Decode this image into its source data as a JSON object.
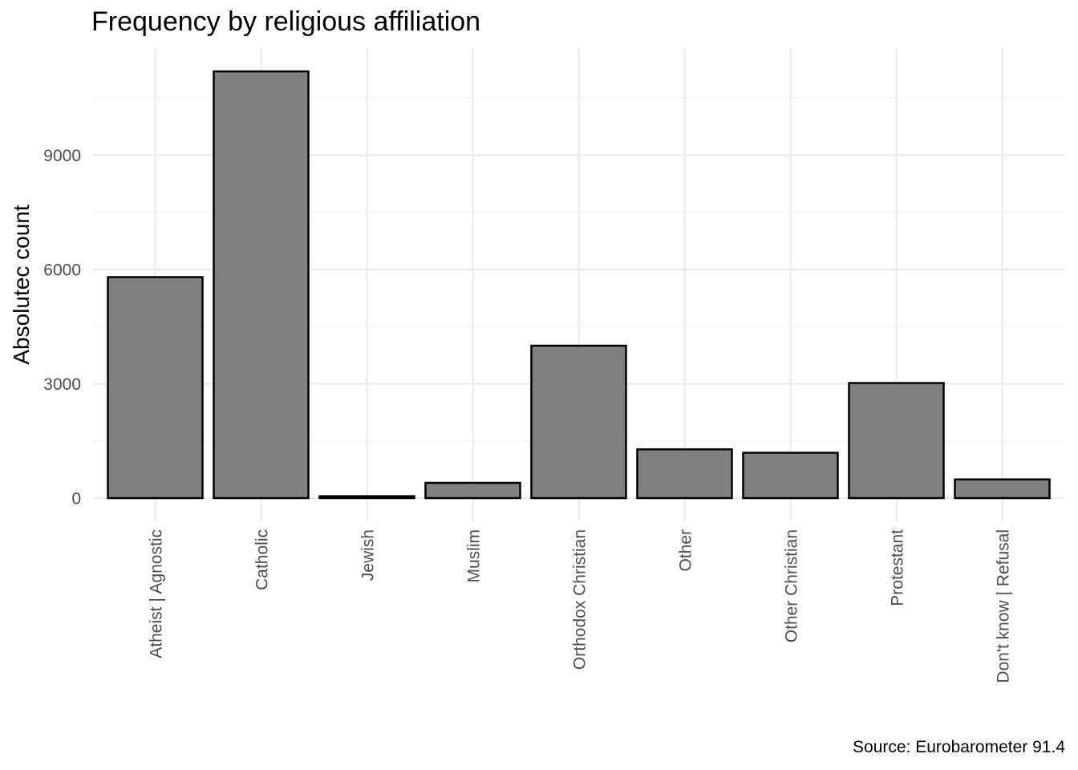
{
  "chart_data": {
    "type": "bar",
    "title": "Frequency by religious affiliation",
    "caption": "Source: Eurobarometer 91.4",
    "xlabel": "",
    "ylabel": "Absolutec count",
    "categories": [
      "Atheist | Agnostic",
      "Catholic",
      "Jewish",
      "Muslim",
      "Orthodox Christian",
      "Other",
      "Other Christian",
      "Protestant",
      "Don't know | Refusal"
    ],
    "values": [
      5800,
      11200,
      50,
      400,
      4000,
      1280,
      1190,
      3020,
      490
    ],
    "yticks": [
      0,
      3000,
      6000,
      9000
    ],
    "ylim": [
      0,
      11800
    ],
    "grid": true,
    "legend": "none",
    "colors": {
      "bar_fill": "#808080",
      "bar_stroke": "#000000",
      "grid": "#ebebeb"
    }
  }
}
